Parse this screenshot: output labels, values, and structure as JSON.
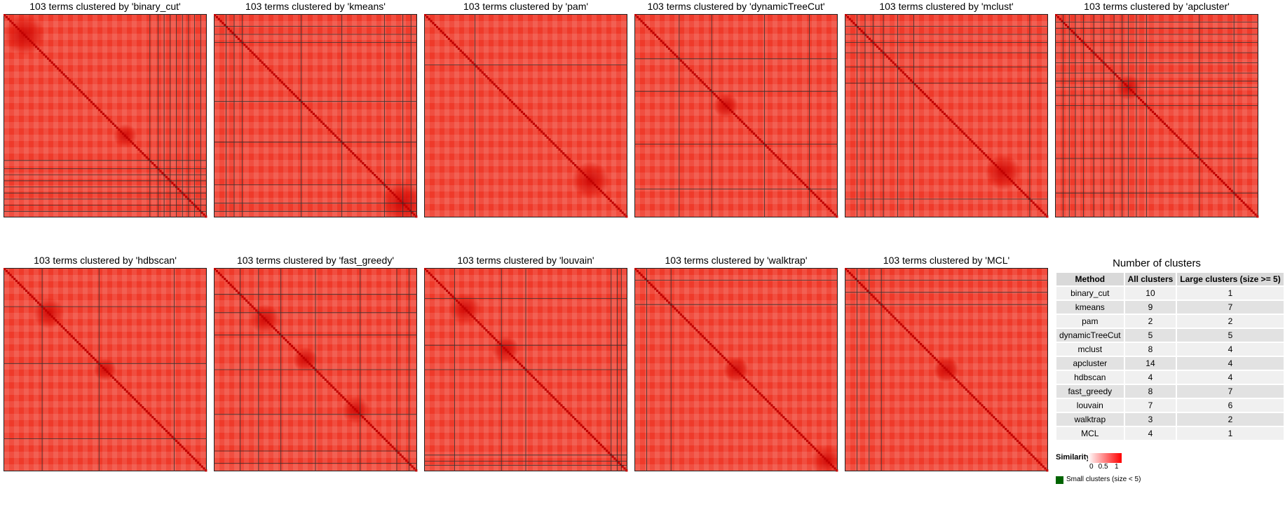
{
  "chart_data": [
    {
      "type": "heatmap",
      "title": "103 terms clustered by 'binary_cut'",
      "n_terms": 103,
      "boundaries": [
        0.72,
        0.76,
        0.79,
        0.82,
        0.85,
        0.88,
        0.91,
        0.94,
        0.97
      ],
      "hotspots": [
        [
          0.6,
          0.6,
          0.04
        ],
        [
          0.1,
          0.1,
          0.05
        ]
      ]
    },
    {
      "type": "heatmap",
      "title": "103 terms clustered by 'kmeans'",
      "n_terms": 103,
      "boundaries": [
        0.06,
        0.1,
        0.14,
        0.43,
        0.63,
        0.84,
        0.93,
        0.97
      ],
      "hotspots": [
        [
          0.93,
          0.93,
          0.05
        ]
      ]
    },
    {
      "type": "heatmap",
      "title": "103 terms clustered by 'pam'",
      "n_terms": 103,
      "boundaries": [
        0.25
      ],
      "hotspots": [
        [
          0.82,
          0.82,
          0.05
        ]
      ]
    },
    {
      "type": "heatmap",
      "title": "103 terms clustered by 'dynamicTreeCut'",
      "n_terms": 103,
      "boundaries": [
        0.22,
        0.38,
        0.64,
        0.86
      ],
      "hotspots": [
        [
          0.45,
          0.45,
          0.05
        ]
      ]
    },
    {
      "type": "heatmap",
      "title": "103 terms clustered by 'mclust'",
      "n_terms": 103,
      "boundaries": [
        0.06,
        0.1,
        0.14,
        0.19,
        0.26,
        0.34,
        0.91
      ],
      "hotspots": [
        [
          0.78,
          0.78,
          0.05
        ]
      ]
    },
    {
      "type": "heatmap",
      "title": "103 terms clustered by 'apcluster'",
      "n_terms": 103,
      "boundaries": [
        0.04,
        0.07,
        0.1,
        0.14,
        0.19,
        0.24,
        0.29,
        0.33,
        0.36,
        0.4,
        0.45,
        0.71,
        0.88
      ],
      "hotspots": [
        [
          0.36,
          0.36,
          0.04
        ]
      ]
    },
    {
      "type": "heatmap",
      "title": "103 terms clustered by 'hdbscan'",
      "n_terms": 103,
      "boundaries": [
        0.19,
        0.47,
        0.84
      ],
      "hotspots": [
        [
          0.5,
          0.5,
          0.05
        ],
        [
          0.22,
          0.22,
          0.04
        ]
      ]
    },
    {
      "type": "heatmap",
      "title": "103 terms clustered by 'fast_greedy'",
      "n_terms": 103,
      "boundaries": [
        0.13,
        0.22,
        0.33,
        0.5,
        0.72,
        0.9,
        0.96
      ],
      "hotspots": [
        [
          0.25,
          0.25,
          0.04
        ],
        [
          0.45,
          0.45,
          0.05
        ],
        [
          0.7,
          0.7,
          0.04
        ]
      ]
    },
    {
      "type": "heatmap",
      "title": "103 terms clustered by 'louvain'",
      "n_terms": 103,
      "boundaries": [
        0.15,
        0.38,
        0.5,
        0.92,
        0.95,
        0.97
      ],
      "hotspots": [
        [
          0.2,
          0.2,
          0.04
        ],
        [
          0.4,
          0.4,
          0.05
        ]
      ]
    },
    {
      "type": "heatmap",
      "title": "103 terms clustered by 'walktrap'",
      "n_terms": 103,
      "boundaries": [
        0.06,
        0.18
      ],
      "hotspots": [
        [
          0.5,
          0.5,
          0.06
        ],
        [
          0.95,
          0.95,
          0.03
        ]
      ]
    },
    {
      "type": "heatmap",
      "title": "103 terms clustered by 'MCL'",
      "n_terms": 103,
      "boundaries": [
        0.06,
        0.12,
        0.18
      ],
      "hotspots": [
        [
          0.5,
          0.5,
          0.06
        ]
      ]
    }
  ],
  "counts_table": {
    "title": "Number of clusters",
    "headers": [
      "Method",
      "All clusters",
      "Large clusters (size >= 5)"
    ],
    "rows": [
      [
        "binary_cut",
        "10",
        "1"
      ],
      [
        "kmeans",
        "9",
        "7"
      ],
      [
        "pam",
        "2",
        "2"
      ],
      [
        "dynamicTreeCut",
        "5",
        "5"
      ],
      [
        "mclust",
        "8",
        "4"
      ],
      [
        "apcluster",
        "14",
        "4"
      ],
      [
        "hdbscan",
        "4",
        "4"
      ],
      [
        "fast_greedy",
        "8",
        "7"
      ],
      [
        "louvain",
        "7",
        "6"
      ],
      [
        "walktrap",
        "3",
        "2"
      ],
      [
        "MCL",
        "4",
        "1"
      ]
    ]
  },
  "legend": {
    "title": "Similarity",
    "ticks": [
      "0",
      "0.5",
      "1"
    ],
    "colors": [
      "#ffffff",
      "#ff0000"
    ],
    "small_label": "Small clusters (size < 5)",
    "small_color": "#006400"
  }
}
